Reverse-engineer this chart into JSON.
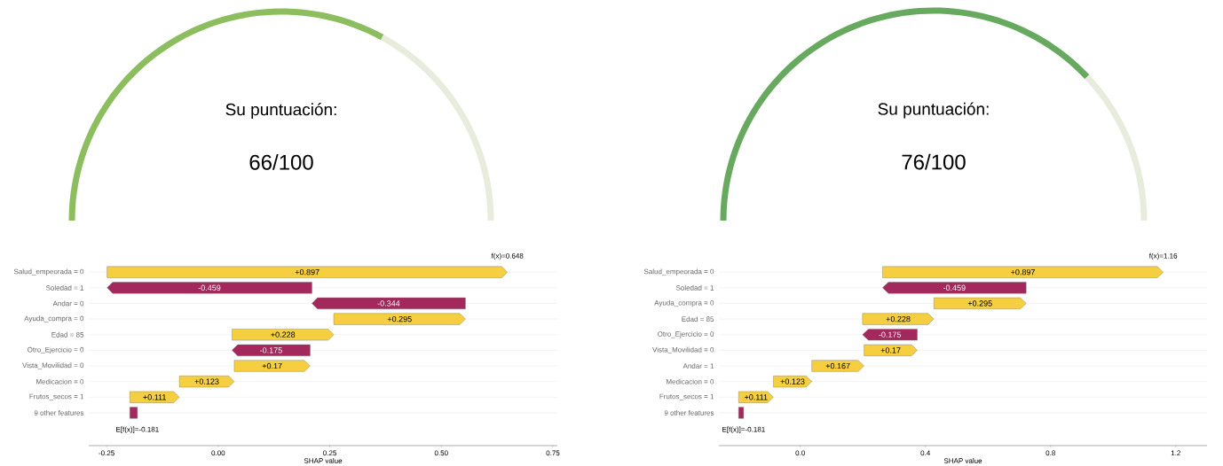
{
  "chart_data": [
    {
      "type": "donut",
      "title": "Su puntuación:",
      "annotations": [
        "66/100"
      ],
      "categories": [
        null,
        null
      ],
      "values": [
        66,
        34
      ],
      "colors": [
        "#8cbd5f",
        "#e8ecdc"
      ]
    },
    {
      "type": "donut",
      "title": "Su puntuación:",
      "annotations": [
        "76/100"
      ],
      "categories": [
        null,
        null
      ],
      "values": [
        76,
        24
      ],
      "colors": [
        "#66a95f",
        "#e8ecdc"
      ]
    },
    {
      "type": "bar",
      "orientation": "horizontal",
      "xlabel": "SHAP value",
      "grid": "y",
      "categories": [
        "Salud_empeorada = 0",
        "Soledad = 1",
        "Andar = 0",
        "Ayuda_compra = 0",
        "Edad = 85",
        "Otro_Ejercicio = 0",
        "Vista_Movilidad = 0",
        "Medicacion = 0",
        "Frutos_secos = 1",
        "9 other features"
      ],
      "values": [
        0.897,
        -0.459,
        -0.344,
        0.295,
        0.228,
        -0.175,
        0.17,
        0.123,
        0.111,
        -0.017
      ],
      "base": [
        -0.249,
        0.21,
        0.554,
        0.259,
        0.031,
        0.206,
        0.036,
        -0.087,
        -0.198,
        -0.181
      ],
      "value_labels": [
        "+0.897",
        "-0.459",
        "-0.344",
        "+0.295",
        "+0.228",
        "-0.175",
        "+0.17",
        "+0.123",
        "+0.111",
        null
      ],
      "colors": [
        "#f5cf3f",
        "#a3295c",
        "#a3295c",
        "#f5cf3f",
        "#f5cf3f",
        "#a3295c",
        "#f5cf3f",
        "#f5cf3f",
        "#f5cf3f",
        "#a3295c"
      ],
      "xlim": [
        -0.29,
        0.76
      ],
      "xticks": [
        {
          "value": -0.25,
          "label": "-0.25"
        },
        {
          "value": 0,
          "label": "0.00"
        },
        {
          "value": 0.25,
          "label": "0.25"
        },
        {
          "value": 0.5,
          "label": "0.50"
        },
        {
          "value": 0.75,
          "label": "0.75"
        }
      ],
      "annotations": [
        "f(x)=0.648",
        "E[f(x)]=-0.181"
      ]
    },
    {
      "type": "bar",
      "orientation": "horizontal",
      "xlabel": "SHAP value",
      "grid": "y",
      "categories": [
        "Salud_empeorada = 0",
        "Soledad = 1",
        "Ayuda_compra = 0",
        "Edad = 85",
        "Otro_Ejercicio = 0",
        "Vista_Movilidad = 0",
        "Andar = 1",
        "Medicacion = 0",
        "Frutos_secos = 1",
        "9 other features"
      ],
      "values": [
        0.897,
        -0.459,
        0.295,
        0.228,
        -0.175,
        0.17,
        0.167,
        0.123,
        0.111,
        -0.016
      ],
      "base": [
        0.263,
        0.722,
        0.427,
        0.199,
        0.374,
        0.204,
        0.037,
        -0.086,
        -0.197,
        -0.181
      ],
      "value_labels": [
        "+0.897",
        "-0.459",
        "+0.295",
        "+0.228",
        "-0.175",
        "+0.17",
        "+0.167",
        "+0.123",
        "+0.111",
        null
      ],
      "colors": [
        "#f5cf3f",
        "#a3295c",
        "#f5cf3f",
        "#f5cf3f",
        "#a3295c",
        "#f5cf3f",
        "#f5cf3f",
        "#f5cf3f",
        "#f5cf3f",
        "#a3295c"
      ],
      "xlim": [
        -0.26,
        1.3
      ],
      "xticks": [
        {
          "value": 0,
          "label": "0.0"
        },
        {
          "value": 0.4,
          "label": "0.4"
        },
        {
          "value": 0.8,
          "label": "0.8"
        },
        {
          "value": 1.2,
          "label": "1.2"
        }
      ],
      "annotations": [
        "f(x)=1.16",
        "E[f(x)]=-0.181"
      ]
    }
  ]
}
